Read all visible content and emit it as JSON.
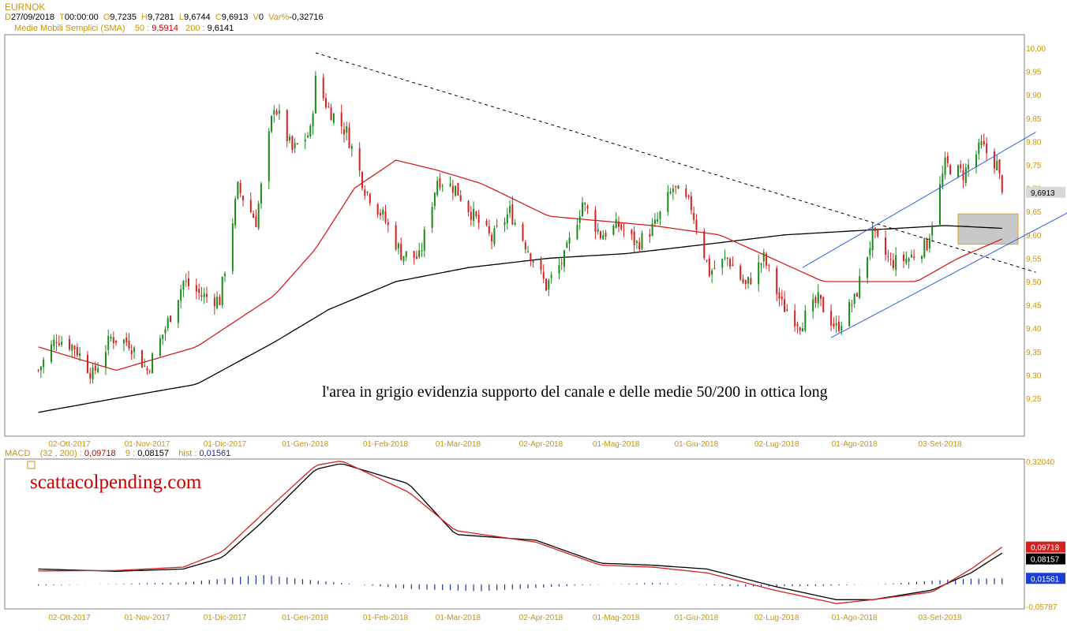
{
  "header": {
    "symbol": "EURNOK",
    "line1": {
      "d_label": "D",
      "date": "27/09/2018",
      "t_label": "T",
      "time": "00:00:00",
      "o_label": "O",
      "open": "9,7235",
      "h_label": "H",
      "high": "9,7281",
      "l_label": "L",
      "low": "9,6744",
      "c_label": "C",
      "close": "9,6913",
      "v_label": "V",
      "volume": "0",
      "var_label": "Var%",
      "var": "-0,32716"
    },
    "sma": {
      "label": "Medie Mobili Semplici (SMA)",
      "p50_label": "50 :",
      "p50_value": "9,5914",
      "p200_label": "200 :",
      "p200_value": "9,6141"
    }
  },
  "macd_header": {
    "label": "MACD",
    "params": "(32 , 200) :",
    "macd_value": "0,09718",
    "signal_label": "9 :",
    "signal_value": "0,08157",
    "hist_label": "hist :",
    "hist_value": "0,01561"
  },
  "annotation": "l'area in grigio evidenzia supporto del canale e delle medie 50/200 in ottica long",
  "watermark": "scattacolpending.com",
  "colors": {
    "up": "#1a8a1a",
    "down": "#d42020",
    "sma50": "#d42020",
    "sma200": "#000000",
    "channel": "#2d5ee6",
    "zone": "#c8c8c8",
    "zone_border": "#e8a400",
    "axis_text": "#c8940a",
    "macd": "#d42020",
    "signal": "#000000",
    "hist": "#1b2e9e"
  },
  "chart_data": [
    {
      "type": "candlestick",
      "symbol": "EURNOK",
      "x_ticks": [
        "02-Ott-2017",
        "01-Nov-2017",
        "01-Dic-2017",
        "01-Gen-2018",
        "01-Feb-2018",
        "01-Mar-2018",
        "02-Apr-2018",
        "01-Mag-2018",
        "01-Giu-2018",
        "02-Lug-2018",
        "01-Ago-2018",
        "03-Set-2018"
      ],
      "y_ticks": [
        "10,00",
        "9,95",
        "9,90",
        "9,85",
        "9,80",
        "9,75",
        "9,70",
        "9,65",
        "9,60",
        "9,55",
        "9,50",
        "9,45",
        "9,40",
        "9,35",
        "9,30",
        "9,25"
      ],
      "ylim": [
        9.2,
        10.02
      ],
      "last_price_label": "9,6913",
      "close_path": [
        [
          "2017-09-20",
          9.31
        ],
        [
          "2017-09-27",
          9.38
        ],
        [
          "2017-10-04",
          9.36
        ],
        [
          "2017-10-11",
          9.3
        ],
        [
          "2017-10-18",
          9.38
        ],
        [
          "2017-10-25",
          9.37
        ],
        [
          "2017-11-01",
          9.31
        ],
        [
          "2017-11-08",
          9.4
        ],
        [
          "2017-11-15",
          9.5
        ],
        [
          "2017-11-22",
          9.47
        ],
        [
          "2017-11-29",
          9.46
        ],
        [
          "2017-12-06",
          9.7
        ],
        [
          "2017-12-13",
          9.63
        ],
        [
          "2017-12-20",
          9.88
        ],
        [
          "2017-12-27",
          9.78
        ],
        [
          "2018-01-03",
          9.82
        ],
        [
          "2018-01-05",
          9.93
        ],
        [
          "2018-01-10",
          9.87
        ],
        [
          "2018-01-17",
          9.82
        ],
        [
          "2018-01-24",
          9.7
        ],
        [
          "2018-01-31",
          9.64
        ],
        [
          "2018-02-07",
          9.56
        ],
        [
          "2018-02-14",
          9.55
        ],
        [
          "2018-02-21",
          9.72
        ],
        [
          "2018-02-28",
          9.7
        ],
        [
          "2018-03-07",
          9.64
        ],
        [
          "2018-03-14",
          9.59
        ],
        [
          "2018-03-21",
          9.65
        ],
        [
          "2018-03-28",
          9.57
        ],
        [
          "2018-04-04",
          9.49
        ],
        [
          "2018-04-11",
          9.55
        ],
        [
          "2018-04-18",
          9.67
        ],
        [
          "2018-04-25",
          9.6
        ],
        [
          "2018-05-02",
          9.62
        ],
        [
          "2018-05-09",
          9.58
        ],
        [
          "2018-05-16",
          9.62
        ],
        [
          "2018-05-23",
          9.7
        ],
        [
          "2018-05-30",
          9.66
        ],
        [
          "2018-06-06",
          9.52
        ],
        [
          "2018-06-13",
          9.55
        ],
        [
          "2018-06-20",
          9.49
        ],
        [
          "2018-06-27",
          9.55
        ],
        [
          "2018-07-04",
          9.45
        ],
        [
          "2018-07-11",
          9.41
        ],
        [
          "2018-07-18",
          9.46
        ],
        [
          "2018-07-25",
          9.4
        ],
        [
          "2018-08-01",
          9.46
        ],
        [
          "2018-08-08",
          9.6
        ],
        [
          "2018-08-15",
          9.54
        ],
        [
          "2018-08-22",
          9.55
        ],
        [
          "2018-08-29",
          9.58
        ],
        [
          "2018-09-05",
          9.75
        ],
        [
          "2018-09-12",
          9.73
        ],
        [
          "2018-09-19",
          9.79
        ],
        [
          "2018-09-25",
          9.75
        ],
        [
          "2018-09-27",
          9.6913
        ]
      ],
      "sma50": [
        [
          "2017-09-20",
          9.36
        ],
        [
          "2017-10-20",
          9.31
        ],
        [
          "2017-11-20",
          9.36
        ],
        [
          "2017-12-20",
          9.47
        ],
        [
          "2018-01-05",
          9.57
        ],
        [
          "2018-01-20",
          9.7
        ],
        [
          "2018-02-05",
          9.76
        ],
        [
          "2018-02-20",
          9.74
        ],
        [
          "2018-03-10",
          9.71
        ],
        [
          "2018-04-05",
          9.64
        ],
        [
          "2018-04-25",
          9.63
        ],
        [
          "2018-05-15",
          9.62
        ],
        [
          "2018-06-10",
          9.6
        ],
        [
          "2018-06-30",
          9.55
        ],
        [
          "2018-07-20",
          9.5
        ],
        [
          "2018-08-10",
          9.5
        ],
        [
          "2018-08-25",
          9.5
        ],
        [
          "2018-09-10",
          9.55
        ],
        [
          "2018-09-27",
          9.5914
        ]
      ],
      "sma200": [
        [
          "2017-09-20",
          9.22
        ],
        [
          "2017-10-20",
          9.25
        ],
        [
          "2017-11-20",
          9.28
        ],
        [
          "2017-12-20",
          9.37
        ],
        [
          "2018-01-10",
          9.44
        ],
        [
          "2018-02-05",
          9.5
        ],
        [
          "2018-03-05",
          9.53
        ],
        [
          "2018-04-05",
          9.55
        ],
        [
          "2018-05-05",
          9.56
        ],
        [
          "2018-06-05",
          9.58
        ],
        [
          "2018-07-05",
          9.6
        ],
        [
          "2018-08-05",
          9.61
        ],
        [
          "2018-09-05",
          9.62
        ],
        [
          "2018-09-27",
          9.6141
        ]
      ],
      "trendline": [
        [
          "2018-01-05",
          9.99
        ],
        [
          "2018-10-10",
          9.52
        ]
      ],
      "channel_upper": [
        [
          "2018-07-12",
          9.53
        ],
        [
          "2018-10-10",
          9.82
        ]
      ],
      "channel_lower": [
        [
          "2018-07-23",
          9.38
        ],
        [
          "2018-10-30",
          9.67
        ]
      ],
      "support_zone": {
        "x": [
          "2018-09-10",
          "2018-10-30"
        ],
        "y": [
          9.58,
          9.645
        ]
      }
    },
    {
      "type": "line",
      "name": "MACD",
      "y_ticks": [
        "0,32040",
        "-0,05787"
      ],
      "ylim": [
        -0.05787,
        0.3204
      ],
      "value_labels": [
        "0,09718",
        "0,08157",
        "0,01561"
      ],
      "macd": [
        [
          "2017-09-20",
          0.035
        ],
        [
          "2017-10-20",
          0.036
        ],
        [
          "2017-11-15",
          0.045
        ],
        [
          "2017-11-30",
          0.085
        ],
        [
          "2017-12-15",
          0.18
        ],
        [
          "2018-01-05",
          0.31
        ],
        [
          "2018-01-15",
          0.322
        ],
        [
          "2018-02-10",
          0.24
        ],
        [
          "2018-02-28",
          0.14
        ],
        [
          "2018-03-31",
          0.11
        ],
        [
          "2018-04-25",
          0.05
        ],
        [
          "2018-05-15",
          0.045
        ],
        [
          "2018-06-05",
          0.03
        ],
        [
          "2018-07-01",
          -0.015
        ],
        [
          "2018-07-25",
          -0.05
        ],
        [
          "2018-08-08",
          -0.04
        ],
        [
          "2018-08-31",
          -0.02
        ],
        [
          "2018-09-15",
          0.04
        ],
        [
          "2018-09-27",
          0.09718
        ]
      ],
      "signal": [
        [
          "2017-09-20",
          0.04
        ],
        [
          "2017-10-20",
          0.034
        ],
        [
          "2017-11-15",
          0.04
        ],
        [
          "2017-11-30",
          0.07
        ],
        [
          "2017-12-15",
          0.16
        ],
        [
          "2018-01-05",
          0.3
        ],
        [
          "2018-01-15",
          0.315
        ],
        [
          "2018-02-10",
          0.262
        ],
        [
          "2018-02-28",
          0.13
        ],
        [
          "2018-03-31",
          0.115
        ],
        [
          "2018-04-25",
          0.055
        ],
        [
          "2018-05-15",
          0.05
        ],
        [
          "2018-06-05",
          0.04
        ],
        [
          "2018-07-01",
          -0.005
        ],
        [
          "2018-07-25",
          -0.04
        ],
        [
          "2018-08-08",
          -0.04
        ],
        [
          "2018-08-31",
          -0.015
        ],
        [
          "2018-09-15",
          0.03
        ],
        [
          "2018-09-27",
          0.08157
        ]
      ],
      "hist": [
        [
          "2017-09-20",
          -0.003
        ],
        [
          "2017-11-15",
          0.005
        ],
        [
          "2017-12-15",
          0.025
        ],
        [
          "2018-01-05",
          0.01
        ],
        [
          "2018-02-10",
          -0.012
        ],
        [
          "2018-03-10",
          -0.018
        ],
        [
          "2018-04-15",
          -0.003
        ],
        [
          "2018-05-15",
          0.004
        ],
        [
          "2018-06-20",
          -0.006
        ],
        [
          "2018-07-20",
          -0.004
        ],
        [
          "2018-08-15",
          0.002
        ],
        [
          "2018-09-10",
          0.014
        ],
        [
          "2018-09-27",
          0.01561
        ]
      ]
    }
  ]
}
